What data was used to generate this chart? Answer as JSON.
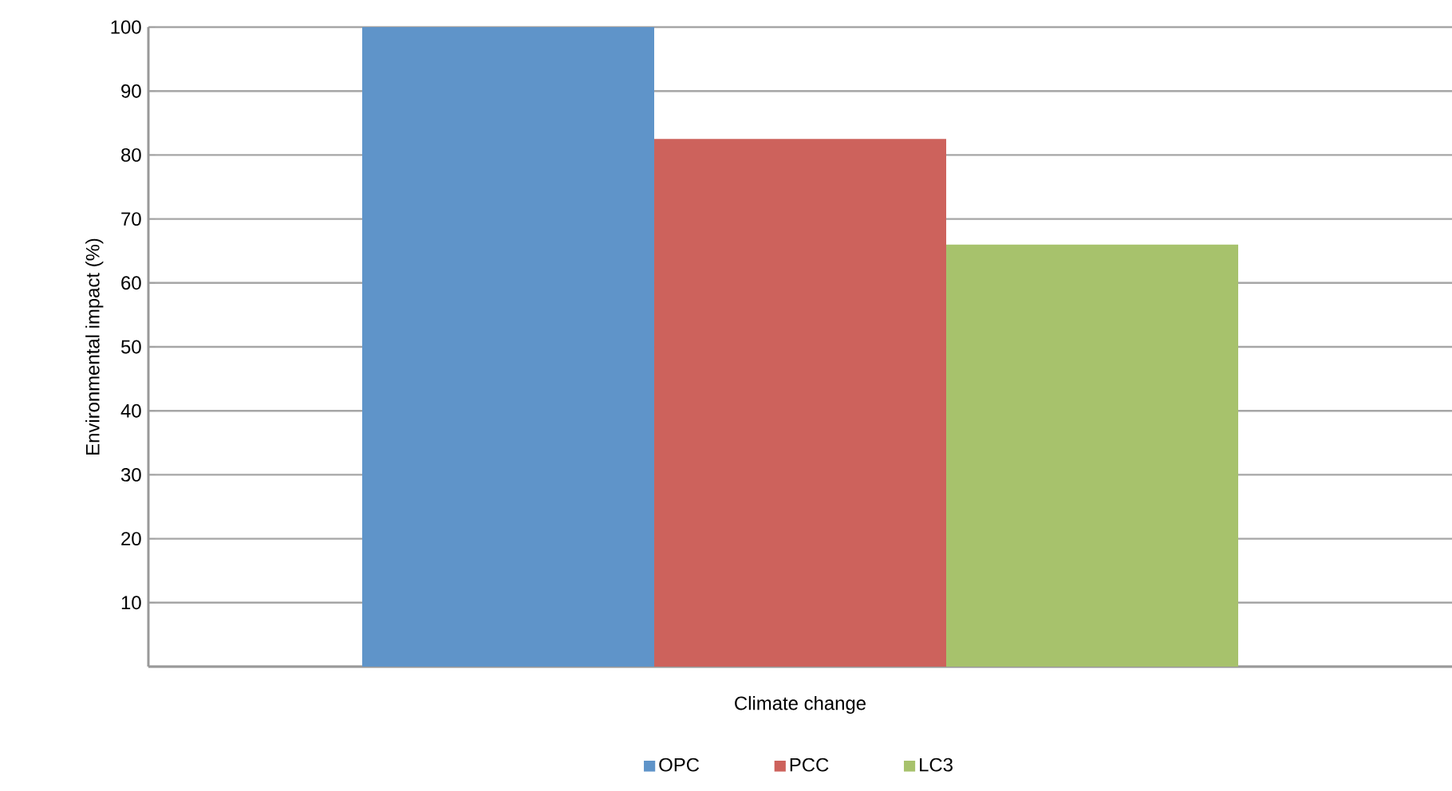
{
  "chart_data": {
    "type": "bar",
    "ylabel": "Environmental impact (%)",
    "categories": [
      "Climate change"
    ],
    "series": [
      {
        "name": "OPC",
        "color": "#5f94c9",
        "values": [
          100
        ]
      },
      {
        "name": "PCC",
        "color": "#cd625c",
        "values": [
          82.5
        ]
      },
      {
        "name": "LC3",
        "color": "#a7c26c",
        "values": [
          66
        ]
      }
    ],
    "ylim": [
      0,
      100
    ],
    "yticks": [
      {
        "value": 0,
        "label": null
      },
      10,
      20,
      30,
      40,
      50,
      60,
      70,
      80,
      90,
      100
    ],
    "grid": "y",
    "legend": "bottom"
  }
}
